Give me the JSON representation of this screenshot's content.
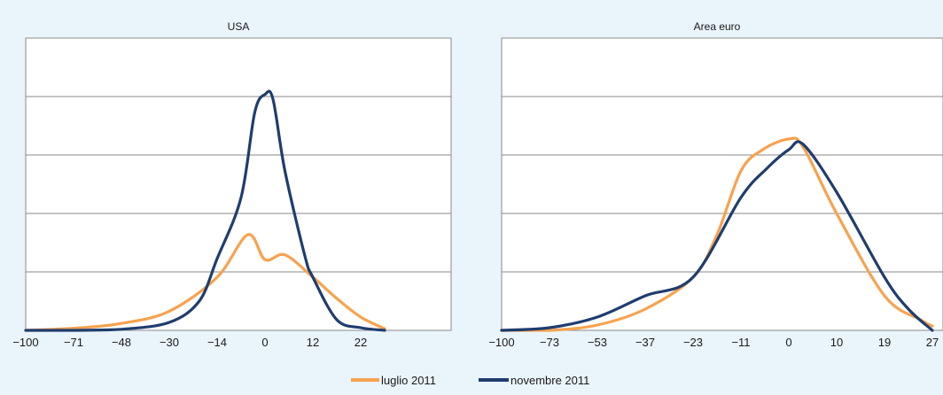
{
  "chart_data": [
    {
      "type": "line",
      "title": "USA",
      "xlabel": "",
      "ylabel": "",
      "x_tick_labels": [
        "-100",
        "-71",
        "-48",
        "-30",
        "-14",
        "0",
        "12",
        "22"
      ],
      "y_tick_labels": [],
      "ylim": [
        0,
        5.5
      ],
      "grid": true,
      "y_gridlines": 4,
      "y_tick_labels_shown": false,
      "legend_position": "bottom-center",
      "x_axis_note": "category axis: tick labels are printed at evenly spaced positions; series x values are given in the printed axis units",
      "series": [
        {
          "name": "luglio 2011",
          "color": "#f7a24f",
          "x": [
            -100,
            -71,
            -48,
            -30,
            -14,
            -5,
            0,
            5,
            12,
            17,
            22,
            27
          ],
          "y": [
            0.0,
            0.04,
            0.13,
            0.36,
            1.0,
            1.8,
            1.33,
            1.42,
            1.0,
            0.6,
            0.25,
            0.03
          ]
        },
        {
          "name": "novembre 2011",
          "color": "#1f3d6e",
          "x": [
            -100,
            -71,
            -48,
            -30,
            -20,
            -14,
            -7,
            -3,
            0,
            2,
            5,
            10,
            12,
            17,
            22,
            27
          ],
          "y": [
            0.0,
            0.0,
            0.02,
            0.15,
            0.55,
            1.35,
            2.5,
            4.1,
            4.44,
            4.35,
            3.0,
            1.4,
            1.0,
            0.2,
            0.05,
            0.0
          ]
        }
      ]
    },
    {
      "type": "line",
      "title": "Area euro",
      "xlabel": "",
      "ylabel": "",
      "x_tick_labels": [
        "-100",
        "-73",
        "-53",
        "-37",
        "-23",
        "-11",
        "0",
        "10",
        "19",
        "27"
      ],
      "y_tick_labels": [],
      "ylim": [
        0,
        5.5
      ],
      "grid": true,
      "y_gridlines": 4,
      "y_tick_labels_shown": false,
      "legend_position": "bottom-center",
      "x_axis_note": "category axis: tick labels are printed at evenly spaced positions; series x values are given in the printed axis units",
      "series": [
        {
          "name": "luglio 2011",
          "color": "#f7a24f",
          "x": [
            -100,
            -73,
            -53,
            -37,
            -23,
            -17,
            -11,
            -6,
            0,
            3,
            10,
            19,
            25,
            27
          ],
          "y": [
            0.0,
            0.0,
            0.1,
            0.4,
            1.0,
            1.8,
            3.0,
            3.4,
            3.6,
            3.45,
            2.2,
            0.65,
            0.2,
            0.08
          ]
        },
        {
          "name": "novembre 2011",
          "color": "#1f3d6e",
          "x": [
            -100,
            -73,
            -53,
            -37,
            -23,
            -11,
            -5,
            0,
            3,
            10,
            19,
            23,
            27
          ],
          "y": [
            0.0,
            0.05,
            0.25,
            0.65,
            1.0,
            2.5,
            3.05,
            3.4,
            3.5,
            2.6,
            1.0,
            0.4,
            0.0
          ]
        }
      ]
    }
  ],
  "legend": {
    "items": [
      {
        "label": "luglio 2011",
        "color": "#f7a24f"
      },
      {
        "label": "novembre 2011",
        "color": "#1f3d6e"
      }
    ]
  }
}
